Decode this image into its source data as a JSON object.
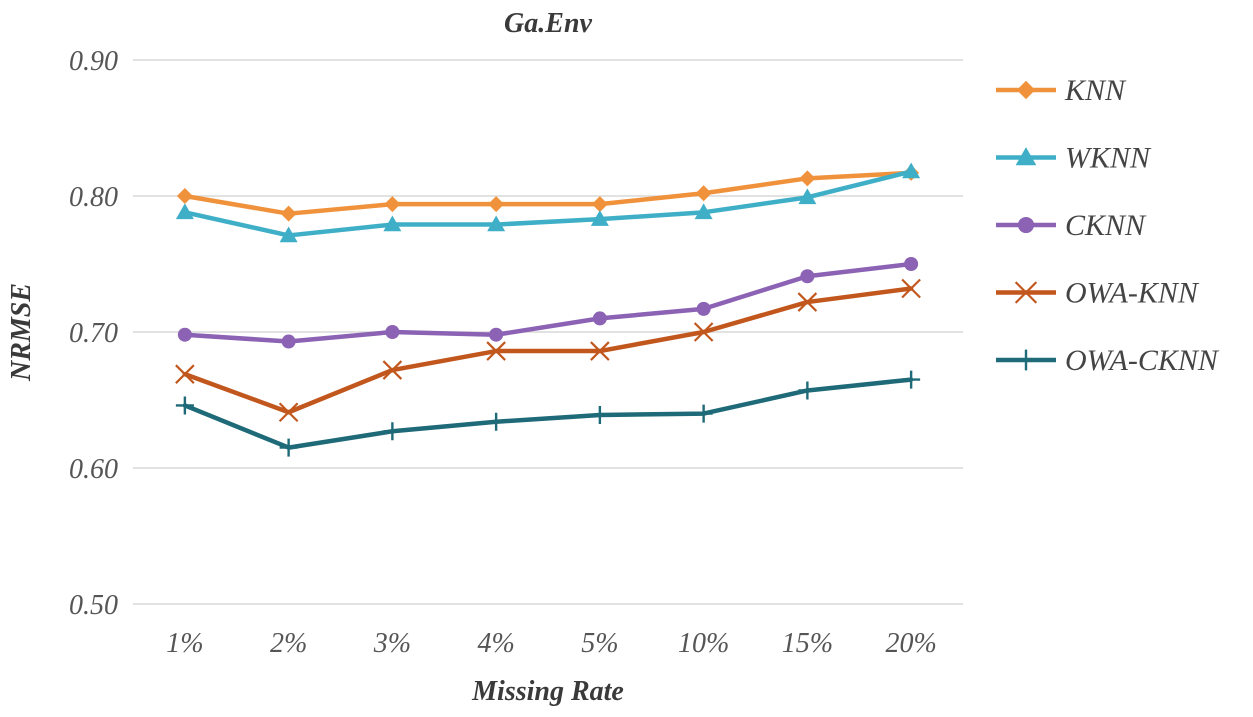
{
  "chart_data": {
    "type": "line",
    "title": "Ga.Env",
    "xlabel": "Missing Rate",
    "ylabel": "NRMSE",
    "categories": [
      "1%",
      "2%",
      "3%",
      "4%",
      "5%",
      "10%",
      "15%",
      "20%"
    ],
    "y_ticks": [
      "0.50",
      "0.60",
      "0.70",
      "0.80",
      "0.90"
    ],
    "ylim": [
      0.5,
      0.9
    ],
    "grid": true,
    "legend_position": "right",
    "series": [
      {
        "name": "KNN",
        "color": "#F0923C",
        "marker": "diamond",
        "values": [
          0.8,
          0.787,
          0.794,
          0.794,
          0.794,
          0.802,
          0.813,
          0.817
        ]
      },
      {
        "name": "WKNN",
        "color": "#3FAFC8",
        "marker": "triangle",
        "values": [
          0.788,
          0.771,
          0.779,
          0.779,
          0.783,
          0.788,
          0.799,
          0.818
        ]
      },
      {
        "name": "CKNN",
        "color": "#8B62B4",
        "marker": "circle",
        "values": [
          0.698,
          0.693,
          0.7,
          0.698,
          0.71,
          0.717,
          0.741,
          0.75
        ]
      },
      {
        "name": "OWA-KNN",
        "color": "#C2571E",
        "marker": "x",
        "values": [
          0.669,
          0.641,
          0.672,
          0.686,
          0.686,
          0.7,
          0.722,
          0.732
        ]
      },
      {
        "name": "OWA-CKNN",
        "color": "#1F6A78",
        "marker": "plus",
        "values": [
          0.646,
          0.615,
          0.627,
          0.634,
          0.639,
          0.64,
          0.657,
          0.665
        ]
      }
    ]
  }
}
